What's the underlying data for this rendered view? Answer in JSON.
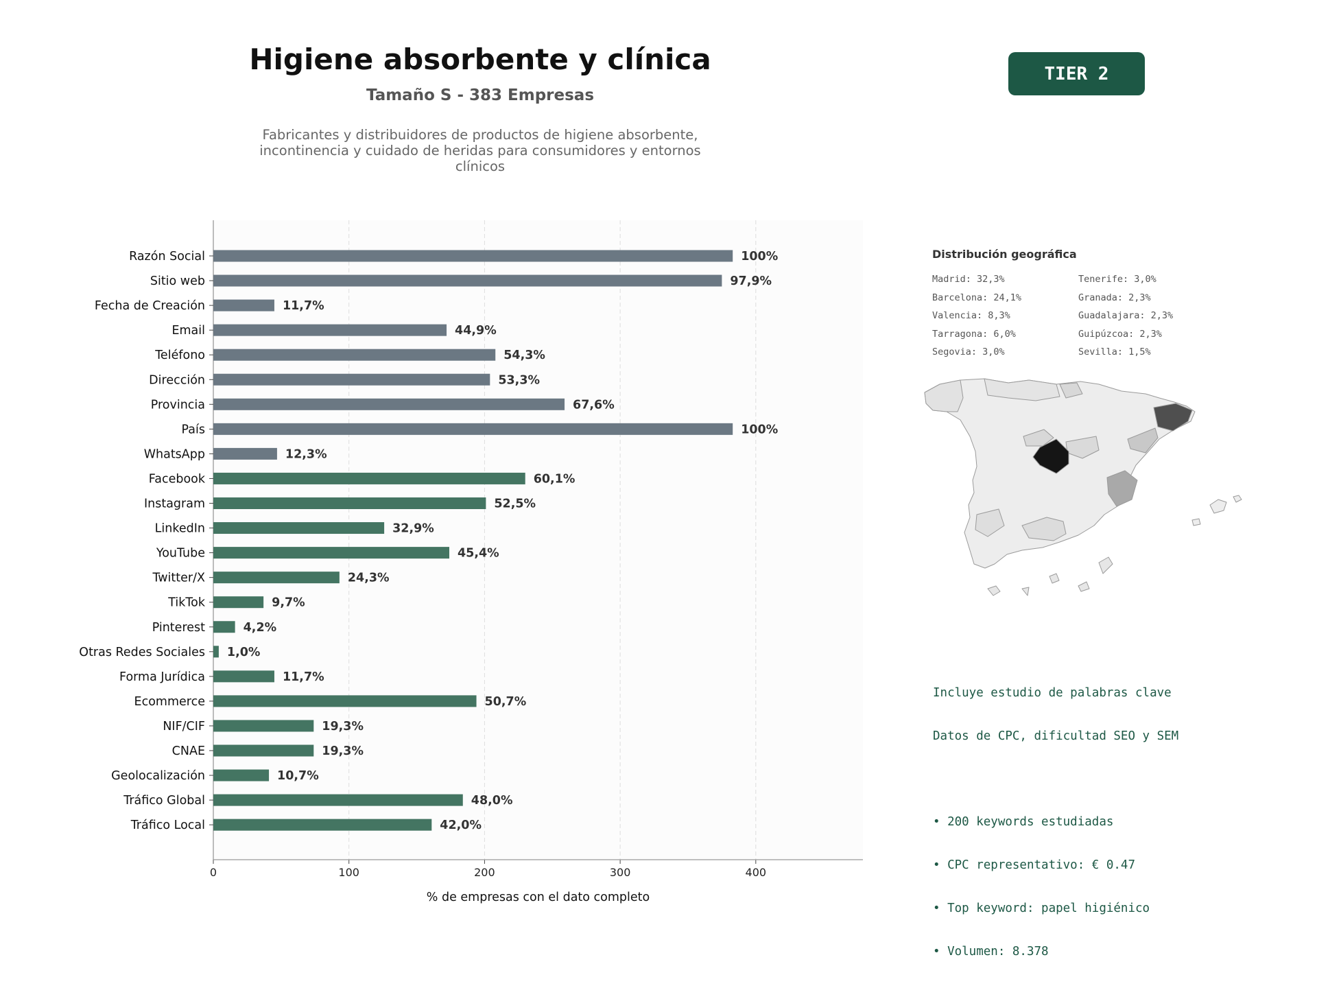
{
  "header": {
    "title": "Higiene absorbente y clínica",
    "subtitle": "Tamaño S - 383 Empresas",
    "description": [
      "Fabricantes y distribuidores de productos de higiene absorbente,",
      "incontinencia y cuidado de heridas para consumidores y entornos",
      "clínicos"
    ],
    "tier": "TIER 2"
  },
  "colors": {
    "gray_bar": "#6b7883",
    "green_bar": "#447562",
    "accent": "#1d5845",
    "value_label": "#333333"
  },
  "chart_data": {
    "type": "bar",
    "orientation": "horizontal",
    "categories": [
      "Razón Social",
      "Sitio web",
      "Fecha de Creación",
      "Email",
      "Teléfono",
      "Dirección",
      "Provincia",
      "País",
      "WhatsApp",
      "Facebook",
      "Instagram",
      "LinkedIn",
      "YouTube",
      "Twitter/X",
      "TikTok",
      "Pinterest",
      "Otras Redes Sociales",
      "Forma Jurídica",
      "Ecommerce",
      "NIF/CIF",
      "CNAE",
      "Geolocalización",
      "Tráfico Global",
      "Tráfico Local"
    ],
    "values": [
      383,
      375,
      45,
      172,
      208,
      204,
      259,
      383,
      47,
      230,
      201,
      126,
      174,
      93,
      37,
      16,
      4,
      45,
      194,
      74,
      74,
      41,
      184,
      161
    ],
    "labels": [
      "100%",
      "97,9%",
      "11,7%",
      "44,9%",
      "54,3%",
      "53,3%",
      "67,6%",
      "100%",
      "12,3%",
      "60,1%",
      "52,5%",
      "32,9%",
      "45,4%",
      "24,3%",
      "9,7%",
      "4,2%",
      "1,0%",
      "11,7%",
      "50,7%",
      "19,3%",
      "19,3%",
      "10,7%",
      "48,0%",
      "42,0%"
    ],
    "groups": [
      "gray",
      "gray",
      "gray",
      "gray",
      "gray",
      "gray",
      "gray",
      "gray",
      "gray",
      "green",
      "green",
      "green",
      "green",
      "green",
      "green",
      "green",
      "green",
      "green",
      "green",
      "green",
      "green",
      "green",
      "green",
      "green"
    ],
    "xticks": [
      "0",
      "100",
      "200",
      "300",
      "400"
    ],
    "xlim": [
      0,
      479
    ],
    "xlabel": "% de empresas con el dato completo",
    "grid": "vertical dashed"
  },
  "geo": {
    "title": "Distribución geográfica",
    "items": [
      "Madrid: 32,3%",
      "Tenerife: 3,0%",
      "Barcelona: 24,1%",
      "Granada: 2,3%",
      "Valencia: 8,3%",
      "Guadalajara: 2,3%",
      "Tarragona: 6,0%",
      "Guipúzcoa: 2,3%",
      "Segovia: 3,0%",
      "Sevilla: 1,5%"
    ]
  },
  "keywords": {
    "lines": [
      "Incluye estudio de palabras clave",
      "Datos de CPC, dificultad SEO y SEM"
    ],
    "bullets": [
      "• 200 keywords estudiadas",
      "• CPC representativo: € 0.47",
      "• Top keyword: papel higiénico",
      "• Volumen: 8.378"
    ]
  }
}
